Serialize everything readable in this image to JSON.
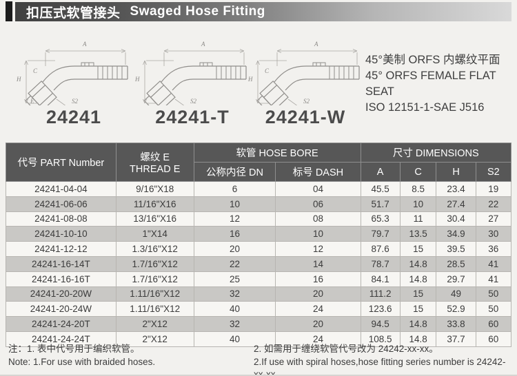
{
  "header": {
    "title_zh": "扣压式软管接头",
    "title_en": "Swaged Hose Fitting"
  },
  "drawings": [
    {
      "label": "24241"
    },
    {
      "label": "24241-T"
    },
    {
      "label": "24241-W"
    }
  ],
  "dimension_labels": {
    "a": "A",
    "h": "H",
    "c": "C",
    "e": "E",
    "s2": "S2"
  },
  "description": {
    "line1": "45°美制 ORFS 内螺纹平面",
    "line2": "45° ORFS FEMALE FLAT SEAT",
    "line3": "ISO 12151-1-SAE J516"
  },
  "table": {
    "headers": {
      "part_number": "代号 PART Number",
      "thread_line1": "螺纹 E",
      "thread_line2": "THREAD E",
      "hose_bore": "软管 HOSE BORE",
      "dn": "公称内径 DN",
      "dash": "标号 DASH",
      "dimensions": "尺寸 DIMENSIONS",
      "a": "A",
      "c": "C",
      "h": "H",
      "s2": "S2"
    },
    "rows": [
      [
        "24241-04-04",
        "9/16\"X18",
        "6",
        "04",
        "45.5",
        "8.5",
        "23.4",
        "19"
      ],
      [
        "24241-06-06",
        "11/16\"X16",
        "10",
        "06",
        "51.7",
        "10",
        "27.4",
        "22"
      ],
      [
        "24241-08-08",
        "13/16\"X16",
        "12",
        "08",
        "65.3",
        "11",
        "30.4",
        "27"
      ],
      [
        "24241-10-10",
        "1\"X14",
        "16",
        "10",
        "79.7",
        "13.5",
        "34.9",
        "30"
      ],
      [
        "24241-12-12",
        "1.3/16\"X12",
        "20",
        "12",
        "87.6",
        "15",
        "39.5",
        "36"
      ],
      [
        "24241-16-14T",
        "1.7/16\"X12",
        "22",
        "14",
        "78.7",
        "14.8",
        "28.5",
        "41"
      ],
      [
        "24241-16-16T",
        "1.7/16\"X12",
        "25",
        "16",
        "84.1",
        "14.8",
        "29.7",
        "41"
      ],
      [
        "24241-20-20W",
        "1.11/16\"X12",
        "32",
        "20",
        "111.2",
        "15",
        "49",
        "50"
      ],
      [
        "24241-20-24W",
        "1.11/16\"X12",
        "40",
        "24",
        "123.6",
        "15",
        "52.9",
        "50"
      ],
      [
        "24241-24-20T",
        "2\"X12",
        "32",
        "20",
        "94.5",
        "14.8",
        "33.8",
        "60"
      ],
      [
        "24241-24-24T",
        "2\"X12",
        "40",
        "24",
        "108.5",
        "14.8",
        "37.7",
        "60"
      ]
    ]
  },
  "notes": {
    "zh1": "注：1. 表中代号用于编织软管。",
    "en1": "Note: 1.For use with braided hoses.",
    "zh2": "2. 如需用于缠绕软管代号改为 24242-xx-xx。",
    "en2": "2.If use with spiral hoses,hose fitting series number is 24242-xx-xx."
  },
  "colors": {
    "title_bar_dark": "#404040",
    "title_bar_light": "#d9d9d9",
    "table_header_bg": "#575757",
    "row_shade_bg": "#c9c8c5",
    "row_light_bg": "#f7f6f3"
  }
}
